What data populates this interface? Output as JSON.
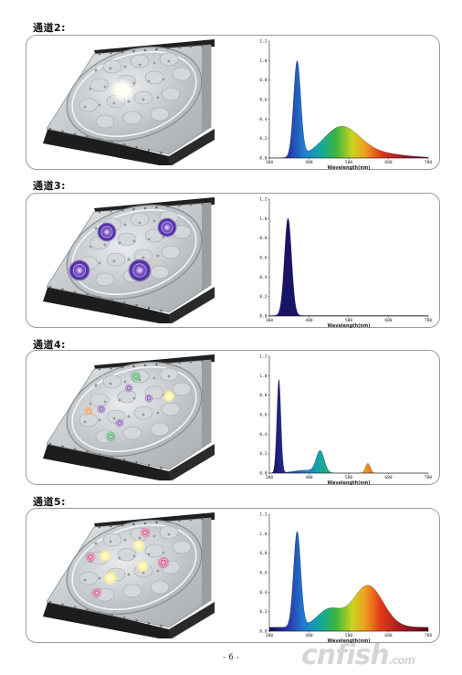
{
  "page": {
    "number_text": "- 6 -",
    "watermark_text": "cnfish",
    "watermark_suffix": ".com"
  },
  "colors": {
    "frame": "#9a9a9a",
    "lamp_body": "#c9ccce",
    "lamp_dark": "#1d1d1d"
  },
  "sections": [
    {
      "label": "通道2:",
      "led_glow": "white",
      "spectrum": {
        "y_ticks": [
          "1.2",
          "1.0",
          "0.8",
          "0.6",
          "0.4",
          "0.2",
          "0.0"
        ],
        "x_ticks": [
          "380",
          "480",
          "580",
          "680",
          "780"
        ],
        "xlabel": "Wavelength(nm)"
      }
    },
    {
      "label": "通道3:",
      "led_glow": "purple",
      "spectrum": {
        "y_ticks": [
          "1.2",
          "1.0",
          "0.8",
          "0.6",
          "0.4",
          "0.2",
          "0.0"
        ],
        "x_ticks": [
          "380",
          "480",
          "580",
          "680",
          "780"
        ],
        "xlabel": "Wavelength(nm)"
      }
    },
    {
      "label": "通道4:",
      "led_glow": "mixed",
      "spectrum": {
        "y_ticks": [
          "1.2",
          "1.0",
          "0.8",
          "0.6",
          "0.4",
          "0.2",
          "0.0"
        ],
        "x_ticks": [
          "380",
          "480",
          "580",
          "680",
          "780"
        ],
        "xlabel": "Wavelength(nm)"
      }
    },
    {
      "label": "通道5:",
      "led_glow": "pink-yellow",
      "spectrum": {
        "y_ticks": [
          "1.2",
          "1.0",
          "0.8",
          "0.6",
          "0.4",
          "0.2",
          "0.0"
        ],
        "x_ticks": [
          "380",
          "480",
          "580",
          "680",
          "780"
        ],
        "xlabel": "Wavelength(nm)"
      }
    }
  ]
}
